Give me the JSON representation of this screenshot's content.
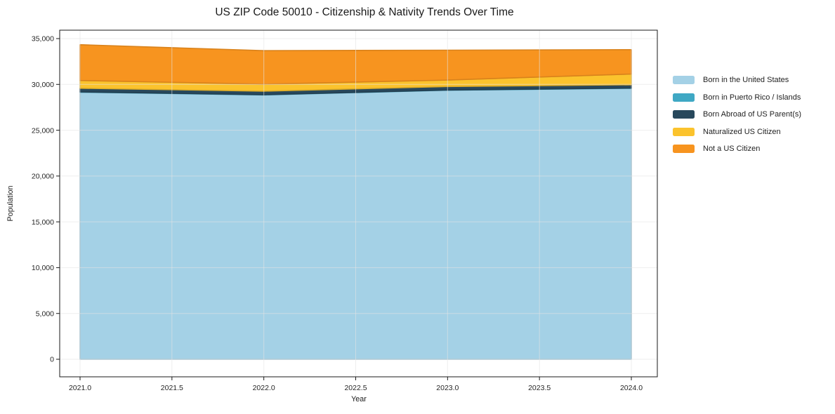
{
  "chart_data": {
    "type": "area",
    "stacked": true,
    "title": "US ZIP Code 50010 - Citizenship & Nativity Trends Over Time",
    "xlabel": "Year",
    "ylabel": "Population",
    "x": [
      2021,
      2022,
      2023,
      2024
    ],
    "series": [
      {
        "name": "Born in the United States",
        "color": "#a4d1e6",
        "values": [
          29150,
          28850,
          29360,
          29570
        ]
      },
      {
        "name": "Born in Puerto Rico / Islands",
        "color": "#3fa8c4",
        "values": [
          30,
          30,
          30,
          30
        ]
      },
      {
        "name": "Born Abroad of US Parent(s)",
        "color": "#28485c",
        "values": [
          400,
          380,
          380,
          360
        ]
      },
      {
        "name": "Naturalized US Citizen",
        "color": "#fbc32d",
        "values": [
          850,
          770,
          700,
          1170
        ]
      },
      {
        "name": "Not a US Citizen",
        "color": "#f7941f",
        "values": [
          3900,
          3650,
          3270,
          2660
        ]
      }
    ],
    "totals": [
      34330,
      33680,
      33740,
      33790
    ],
    "x_tick_labels": [
      "2021.0",
      "2021.5",
      "2022.0",
      "2022.5",
      "2023.0",
      "2023.5",
      "2024.0"
    ],
    "y_tick_labels": [
      "0",
      "5,000",
      "10,000",
      "15,000",
      "20,000",
      "25,000",
      "30,000",
      "35,000"
    ],
    "ylim": [
      0,
      35000
    ],
    "grid": true,
    "grid_color": "#e4e4e4",
    "axis_color": "#1a1a1a",
    "legend_position": "right"
  }
}
